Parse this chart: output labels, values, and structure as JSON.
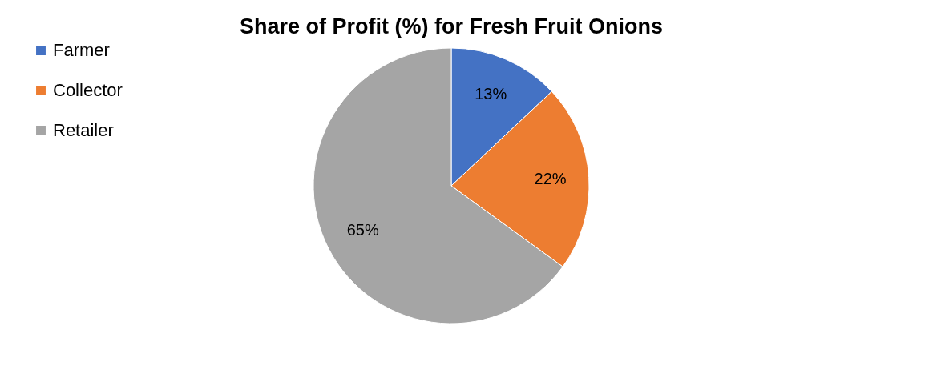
{
  "chart_data": {
    "type": "pie",
    "title": "Share of Profit (%) for Fresh Fruit Onions",
    "categories": [
      "Farmer",
      "Collector",
      "Retailer"
    ],
    "values": [
      13,
      22,
      65
    ],
    "colors": [
      "#4472c4",
      "#ed7d31",
      "#a5a5a5"
    ],
    "value_labels": [
      "13%",
      "22%",
      "65%"
    ],
    "legend": "left"
  }
}
